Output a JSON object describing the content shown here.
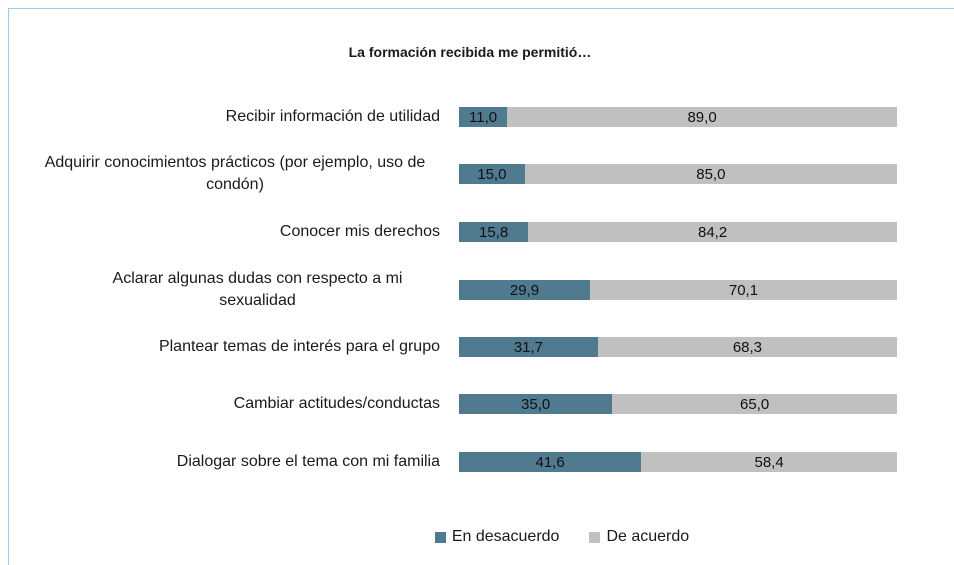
{
  "chart_data": {
    "type": "stacked_bar_horizontal",
    "title": "La formación recibida me permitió…",
    "categories": [
      "Recibir información de utilidad",
      "Adquirir conocimientos prácticos (por ejemplo, uso de condón)",
      "Conocer mis derechos",
      "Aclarar algunas dudas con respecto a mi sexualidad",
      "Plantear temas de interés para el grupo",
      "Cambiar actitudes/conductas",
      "Dialogar sobre el tema con mi familia"
    ],
    "xlim": [
      0,
      100
    ],
    "series": [
      {
        "name": "En desacuerdo",
        "color": "#4f7a8f",
        "values": [
          11.0,
          15.0,
          15.8,
          29.9,
          31.7,
          35.0,
          41.6
        ],
        "value_labels": [
          "11,0",
          "15,0",
          "15,8",
          "29,9",
          "31,7",
          "35,0",
          "41,6"
        ]
      },
      {
        "name": "De acuerdo",
        "color": "#c0c0c0",
        "values": [
          89.0,
          85.0,
          84.2,
          70.1,
          68.3,
          65.0,
          58.4
        ],
        "value_labels": [
          "89,0",
          "85,0",
          "84,2",
          "70,1",
          "68,3",
          "65,0",
          "58,4"
        ]
      }
    ]
  }
}
